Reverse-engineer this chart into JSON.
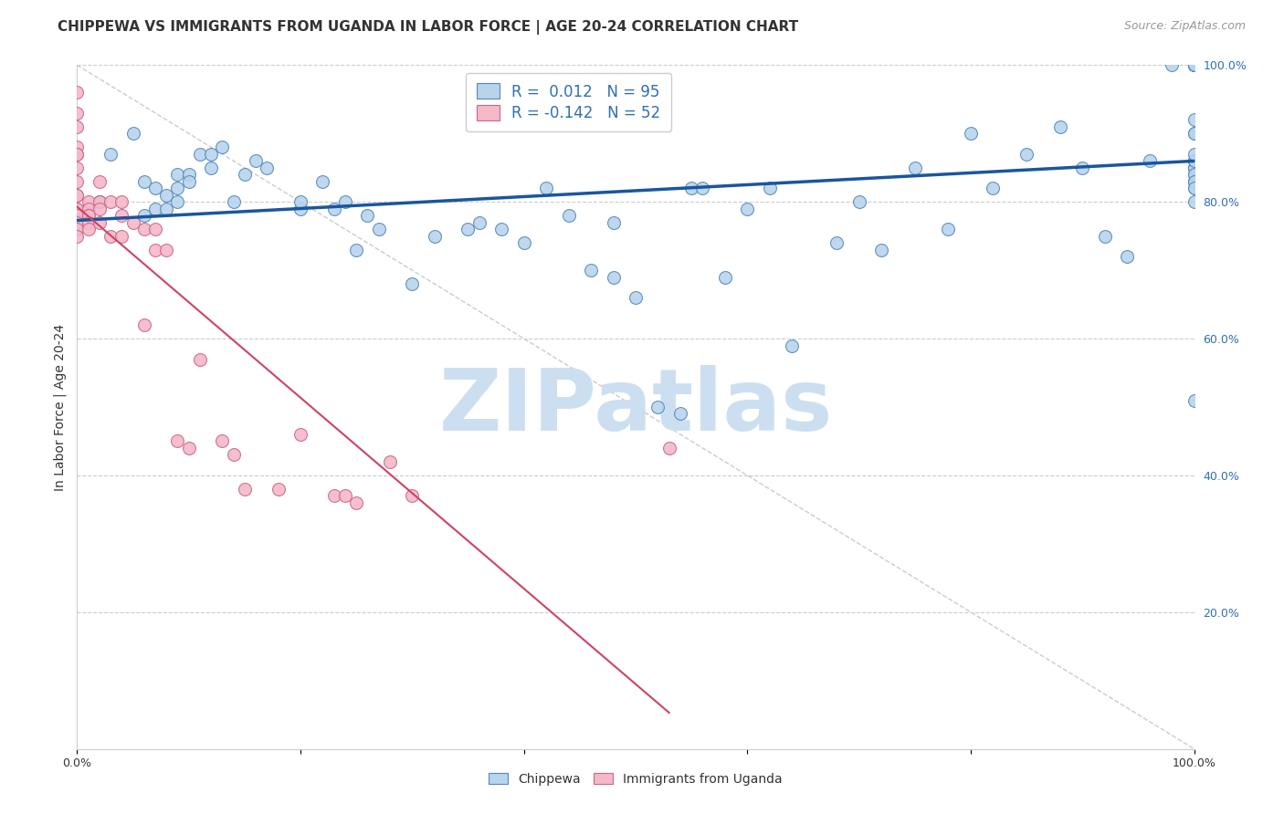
{
  "title": "CHIPPEWA VS IMMIGRANTS FROM UGANDA IN LABOR FORCE | AGE 20-24 CORRELATION CHART",
  "source": "Source: ZipAtlas.com",
  "ylabel": "In Labor Force | Age 20-24",
  "R_blue": 0.012,
  "N_blue": 95,
  "R_pink": -0.142,
  "N_pink": 52,
  "blue_color": "#b8d4eb",
  "blue_edge_color": "#5588bb",
  "blue_line_color": "#1a56a0",
  "pink_color": "#f4b8c8",
  "pink_edge_color": "#cc6688",
  "pink_line_color": "#cc4466",
  "watermark_color": "#ccdff0",
  "grid_color": "#cccccc",
  "background_color": "#ffffff",
  "legend_label_blue": "Chippewa",
  "legend_label_pink": "Immigrants from Uganda",
  "blue_x": [
    0.02,
    0.02,
    0.03,
    0.05,
    0.06,
    0.06,
    0.07,
    0.07,
    0.08,
    0.08,
    0.09,
    0.09,
    0.09,
    0.1,
    0.1,
    0.11,
    0.12,
    0.12,
    0.13,
    0.14,
    0.15,
    0.16,
    0.17,
    0.2,
    0.2,
    0.22,
    0.23,
    0.24,
    0.25,
    0.26,
    0.27,
    0.3,
    0.32,
    0.35,
    0.36,
    0.38,
    0.4,
    0.42,
    0.44,
    0.46,
    0.48,
    0.48,
    0.5,
    0.52,
    0.54,
    0.55,
    0.56,
    0.58,
    0.6,
    0.62,
    0.64,
    0.68,
    0.7,
    0.72,
    0.75,
    0.78,
    0.8,
    0.82,
    0.85,
    0.88,
    0.9,
    0.92,
    0.94,
    0.96,
    0.98,
    1.0,
    1.0,
    1.0,
    1.0,
    1.0,
    1.0,
    1.0,
    1.0,
    1.0,
    1.0,
    1.0,
    1.0,
    1.0,
    1.0,
    1.0,
    1.0,
    1.0,
    1.0,
    1.0,
    1.0,
    1.0,
    1.0,
    1.0,
    1.0,
    1.0,
    1.0,
    1.0,
    1.0,
    1.0,
    1.0
  ],
  "blue_y": [
    0.8,
    0.8,
    0.87,
    0.9,
    0.83,
    0.78,
    0.82,
    0.79,
    0.81,
    0.79,
    0.84,
    0.82,
    0.8,
    0.84,
    0.83,
    0.87,
    0.85,
    0.87,
    0.88,
    0.8,
    0.84,
    0.86,
    0.85,
    0.79,
    0.8,
    0.83,
    0.79,
    0.8,
    0.73,
    0.78,
    0.76,
    0.68,
    0.75,
    0.76,
    0.77,
    0.76,
    0.74,
    0.82,
    0.78,
    0.7,
    0.77,
    0.69,
    0.66,
    0.5,
    0.49,
    0.82,
    0.82,
    0.69,
    0.79,
    0.82,
    0.59,
    0.74,
    0.8,
    0.73,
    0.85,
    0.76,
    0.9,
    0.82,
    0.87,
    0.91,
    0.85,
    0.75,
    0.72,
    0.86,
    1.0,
    0.82,
    0.9,
    0.92,
    0.85,
    1.0,
    1.0,
    0.9,
    0.86,
    1.0,
    1.0,
    0.85,
    0.86,
    0.83,
    1.0,
    1.0,
    1.0,
    0.8,
    0.51,
    0.83,
    0.84,
    0.85,
    0.84,
    1.0,
    0.86,
    0.83,
    0.82,
    0.87,
    1.0,
    1.0,
    1.0
  ],
  "pink_x": [
    0.0,
    0.0,
    0.0,
    0.0,
    0.0,
    0.0,
    0.0,
    0.0,
    0.0,
    0.0,
    0.0,
    0.0,
    0.0,
    0.0,
    0.0,
    0.0,
    0.0,
    0.01,
    0.01,
    0.01,
    0.01,
    0.01,
    0.01,
    0.02,
    0.02,
    0.02,
    0.02,
    0.03,
    0.03,
    0.04,
    0.04,
    0.04,
    0.05,
    0.06,
    0.06,
    0.07,
    0.07,
    0.08,
    0.09,
    0.1,
    0.11,
    0.13,
    0.14,
    0.15,
    0.18,
    0.2,
    0.23,
    0.24,
    0.25,
    0.28,
    0.3,
    0.53
  ],
  "pink_y": [
    0.96,
    0.93,
    0.91,
    0.88,
    0.87,
    0.87,
    0.85,
    0.83,
    0.81,
    0.81,
    0.79,
    0.79,
    0.78,
    0.78,
    0.77,
    0.76,
    0.75,
    0.8,
    0.79,
    0.78,
    0.78,
    0.77,
    0.76,
    0.83,
    0.8,
    0.79,
    0.77,
    0.8,
    0.75,
    0.8,
    0.78,
    0.75,
    0.77,
    0.76,
    0.62,
    0.76,
    0.73,
    0.73,
    0.45,
    0.44,
    0.57,
    0.45,
    0.43,
    0.38,
    0.38,
    0.46,
    0.37,
    0.37,
    0.36,
    0.42,
    0.37,
    0.44
  ],
  "xlim": [
    0.0,
    1.0
  ],
  "ylim": [
    0.0,
    1.0
  ],
  "title_fontsize": 11,
  "source_fontsize": 9,
  "tick_fontsize": 9,
  "label_fontsize": 10
}
